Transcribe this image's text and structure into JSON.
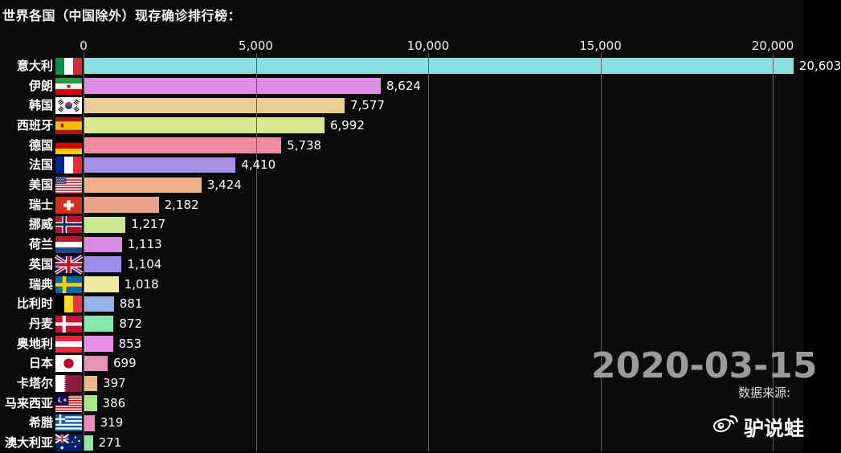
{
  "title": "世界各国（中国除外）现存确诊排行榜：",
  "overlay": {
    "date": "2020-03-15",
    "source": "数据来源:",
    "watermark_text": "驴说蛙"
  },
  "colors": {
    "background": "#0b0b0b",
    "grid": "#616161",
    "text": "#ffffff",
    "date_text": "#9b9b9b"
  },
  "chart_data": {
    "type": "bar",
    "orientation": "horizontal",
    "title": "世界各国（中国除外）现存确诊排行榜",
    "grid": "vertical gridlines on",
    "legend": "none",
    "xlim": [
      0,
      20900
    ],
    "x_ticks": [
      0,
      5000,
      10000,
      15000,
      20000
    ],
    "x_tick_labels": [
      "0",
      "5,000",
      "10,000",
      "15,000",
      "20,000"
    ],
    "categories": [
      "意大利",
      "伊朗",
      "韩国",
      "西班牙",
      "德国",
      "法国",
      "美国",
      "瑞士",
      "挪威",
      "荷兰",
      "英国",
      "瑞典",
      "比利时",
      "丹麦",
      "奥地利",
      "日本",
      "卡塔尔",
      "马来西亚",
      "希腊",
      "澳大利亚"
    ],
    "values": [
      20603,
      8624,
      7577,
      6992,
      5738,
      4410,
      3424,
      2182,
      1217,
      1113,
      1104,
      1018,
      881,
      872,
      853,
      699,
      397,
      386,
      319,
      271
    ],
    "value_labels": [
      "20,603",
      "8,624",
      "7,577",
      "6,992",
      "5,738",
      "4,410",
      "3,424",
      "2,182",
      "1,217",
      "1,113",
      "1,104",
      "1,018",
      "881",
      "872",
      "853",
      "699",
      "397",
      "386",
      "319",
      "271"
    ],
    "bar_colors": [
      "#89dfe0",
      "#dd8de6",
      "#e7cf97",
      "#d9e78f",
      "#f08ba1",
      "#a78ee6",
      "#f0b088",
      "#e8a287",
      "#c7e794",
      "#d88be4",
      "#9b8de9",
      "#ece9a1",
      "#96b1ea",
      "#83e8ad",
      "#ea8de9",
      "#e893b5",
      "#efb98f",
      "#a8e78c",
      "#ee8ac0",
      "#8ce99e"
    ],
    "flags": [
      "it",
      "ir",
      "kr",
      "es",
      "de",
      "fr",
      "us",
      "ch",
      "no",
      "nl",
      "gb",
      "se",
      "be",
      "dk",
      "at",
      "jp",
      "qa",
      "my",
      "gr",
      "au"
    ]
  }
}
